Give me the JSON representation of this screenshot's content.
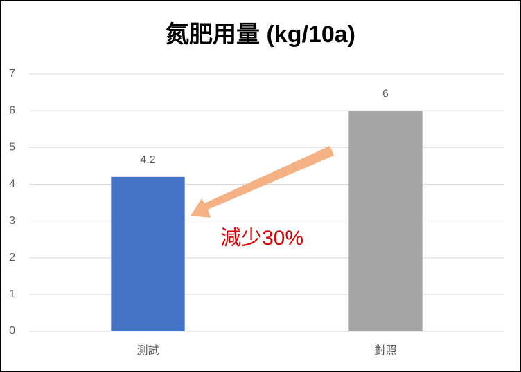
{
  "chart_data": {
    "type": "bar",
    "title": "氮肥用量 (kg/10a)",
    "categories": [
      "測試",
      "對照"
    ],
    "values": [
      4.2,
      6
    ],
    "colors": [
      "#4472c4",
      "#a5a5a5"
    ],
    "ylim": [
      0,
      7
    ],
    "yticks": [
      0,
      1,
      2,
      3,
      4,
      5,
      6,
      7
    ],
    "grid": true,
    "annotation": "減少30%",
    "annotation_color": "#e00000"
  }
}
